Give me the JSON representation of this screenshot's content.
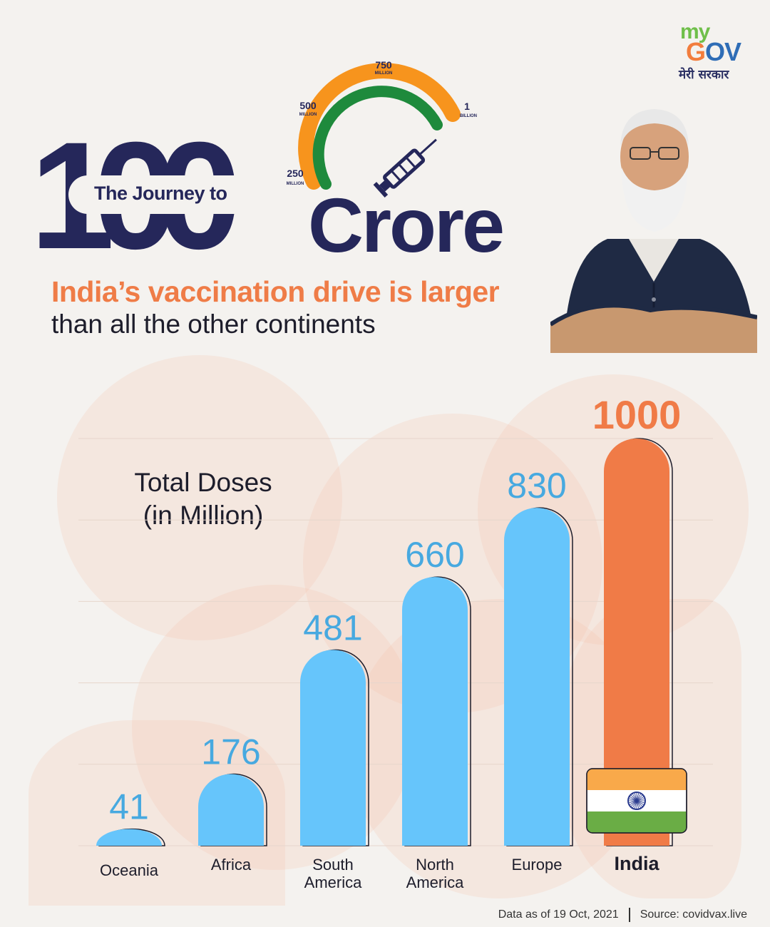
{
  "logo": {
    "my": "my",
    "gov_g": "G",
    "gov_o": "O",
    "gov_v": "V",
    "hindi": "मेरी सरकार"
  },
  "title": {
    "big_number": "100",
    "journey": "The Journey to",
    "crore": "Crore"
  },
  "gauge": {
    "ticks": [
      {
        "value": "250",
        "unit": "MILLION"
      },
      {
        "value": "500",
        "unit": "MILLION"
      },
      {
        "value": "750",
        "unit": "MILLION"
      },
      {
        "value": "1",
        "unit": "BILLION"
      }
    ],
    "colors": {
      "outer": "#f7941d",
      "inner": "#1e8a3c",
      "syringe": "#25275a"
    }
  },
  "headline": "India’s vaccination drive is larger",
  "subheadline": "than all the other continents",
  "chart_data": {
    "type": "bar",
    "title_lines": [
      "Total Doses",
      "(in Million)"
    ],
    "categories": [
      "Oceania",
      "Africa",
      "South America",
      "North America",
      "Europe",
      "India"
    ],
    "category_lines": [
      [
        "Oceania"
      ],
      [
        "Africa"
      ],
      [
        "South",
        "America"
      ],
      [
        "North",
        "America"
      ],
      [
        "Europe"
      ],
      [
        "India"
      ]
    ],
    "values": [
      41,
      176,
      481,
      660,
      830,
      1000
    ],
    "value_labels": [
      "41",
      "176",
      "481",
      "660",
      "830",
      "1000"
    ],
    "colors": {
      "default": "#66c5fb",
      "highlight": "#f07b47",
      "label_default": "#47a9e0",
      "label_highlight": "#f07b47"
    },
    "highlight_category": "India",
    "ylim": [
      0,
      1000
    ],
    "grid": true
  },
  "flag": {
    "saffron": "#f9a94a",
    "white": "#ffffff",
    "green": "#6aad45",
    "chakra": "#2a3b8f"
  },
  "footer": {
    "data_note": "Data as of 19 Oct, 2021",
    "source": "Source: covidvax.live"
  }
}
